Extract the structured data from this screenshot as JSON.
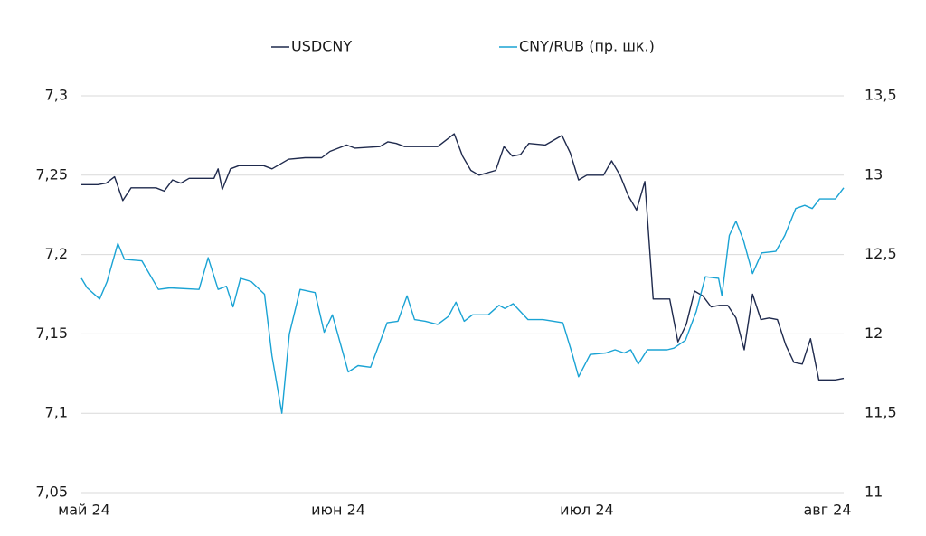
{
  "chart_data": {
    "type": "line",
    "xlim": [
      0,
      92
    ],
    "xticks": [
      {
        "value": 0,
        "label": "май 24"
      },
      {
        "value": 31,
        "label": "июн 24"
      },
      {
        "value": 61,
        "label": "июл 24"
      },
      {
        "value": 92,
        "label": "авг 24"
      }
    ],
    "ylim": [
      7.05,
      7.3
    ],
    "yticks": [
      {
        "value": 7.05,
        "label": "7,05"
      },
      {
        "value": 7.1,
        "label": "7,1"
      },
      {
        "value": 7.15,
        "label": "7,15"
      },
      {
        "value": 7.2,
        "label": "7,2"
      },
      {
        "value": 7.25,
        "label": "7,25"
      },
      {
        "value": 7.3,
        "label": "7,3"
      }
    ],
    "y2lim": [
      11,
      13.5
    ],
    "y2ticks": [
      11,
      {
        "value": 11.5,
        "label": "11,5"
      },
      12,
      {
        "value": 12.5,
        "label": "12,5"
      },
      13,
      {
        "value": 13.5,
        "label": "13,5"
      }
    ],
    "grid": true,
    "series": [
      {
        "name": "USDCNY",
        "color": "#1f2a4d",
        "x": [
          0,
          2,
          3,
          4,
          5,
          6,
          8,
          9,
          10,
          11,
          12,
          13,
          15,
          16,
          16.5,
          17,
          18,
          19,
          22,
          23,
          25,
          27,
          29,
          30,
          32,
          33,
          36,
          37,
          38,
          39,
          43,
          45,
          46,
          47,
          48,
          50,
          51,
          52,
          53,
          54,
          56,
          58,
          59,
          60,
          61,
          63,
          64,
          65,
          66,
          67,
          68,
          69,
          71,
          72,
          73,
          74,
          75,
          76,
          77,
          78,
          79,
          80,
          81,
          82,
          83,
          84,
          85,
          86,
          87,
          88,
          89,
          90,
          91,
          92
        ],
        "values": [
          7.244,
          7.244,
          7.245,
          7.249,
          7.234,
          7.242,
          7.242,
          7.242,
          7.24,
          7.247,
          7.245,
          7.248,
          7.248,
          7.248,
          7.254,
          7.241,
          7.254,
          7.256,
          7.256,
          7.254,
          7.26,
          7.261,
          7.261,
          7.265,
          7.269,
          7.267,
          7.268,
          7.271,
          7.27,
          7.268,
          7.268,
          7.276,
          7.262,
          7.253,
          7.25,
          7.253,
          7.268,
          7.262,
          7.263,
          7.27,
          7.269,
          7.275,
          7.264,
          7.247,
          7.25,
          7.25,
          7.259,
          7.25,
          7.237,
          7.228,
          7.246,
          7.172,
          7.172,
          7.145,
          7.156,
          7.177,
          7.174,
          7.167,
          7.168,
          7.168,
          7.16,
          7.14,
          7.175,
          7.159,
          7.16,
          7.159,
          7.143,
          7.132,
          7.131,
          7.147,
          7.121,
          7.121,
          7.121,
          7.122
        ]
      },
      {
        "name": "CNY/RUB (пр. шк.)",
        "color": "#1aa3d4",
        "axis": "y2",
        "x": [
          0,
          0.7,
          2.2,
          3.1,
          4.4,
          5.2,
          7.3,
          9.3,
          10.7,
          14.2,
          15.3,
          16.5,
          17.5,
          18.3,
          19.2,
          20.5,
          22.1,
          23,
          24.2,
          25.1,
          26.4,
          28.2,
          29.3,
          30.3,
          32.2,
          33.4,
          34.9,
          36.9,
          38.2,
          39.3,
          40.2,
          41.5,
          43,
          44.3,
          45.2,
          46.2,
          47.2,
          49.1,
          50.4,
          51.1,
          52.1,
          53.9,
          55.7,
          58.1,
          59.2,
          60,
          61.4,
          63.3,
          64.4,
          65.5,
          66.3,
          67.2,
          68.3,
          70.7,
          71.5,
          72.9,
          74.2,
          75.3,
          76.9,
          77.3,
          78.2,
          79,
          79.9,
          81,
          82.1,
          83.8,
          84.9,
          86.2,
          87.3,
          88.2,
          89.1,
          91,
          92
        ],
        "values": [
          12.35,
          12.29,
          12.22,
          12.33,
          12.57,
          12.47,
          12.46,
          12.28,
          12.29,
          12.28,
          12.48,
          12.28,
          12.3,
          12.17,
          12.35,
          12.33,
          12.25,
          11.86,
          11.5,
          12.0,
          12.28,
          12.26,
          12.01,
          12.12,
          11.76,
          11.8,
          11.79,
          12.07,
          12.08,
          12.24,
          12.09,
          12.08,
          12.06,
          12.11,
          12.2,
          12.08,
          12.12,
          12.12,
          12.18,
          12.16,
          12.19,
          12.09,
          12.09,
          12.07,
          11.88,
          11.73,
          11.87,
          11.88,
          11.9,
          11.88,
          11.9,
          11.81,
          11.9,
          11.9,
          11.91,
          11.96,
          12.14,
          12.36,
          12.35,
          12.24,
          12.62,
          12.71,
          12.59,
          12.38,
          12.51,
          12.52,
          12.62,
          12.79,
          12.81,
          12.79,
          12.85,
          12.85,
          12.92
        ]
      }
    ]
  }
}
